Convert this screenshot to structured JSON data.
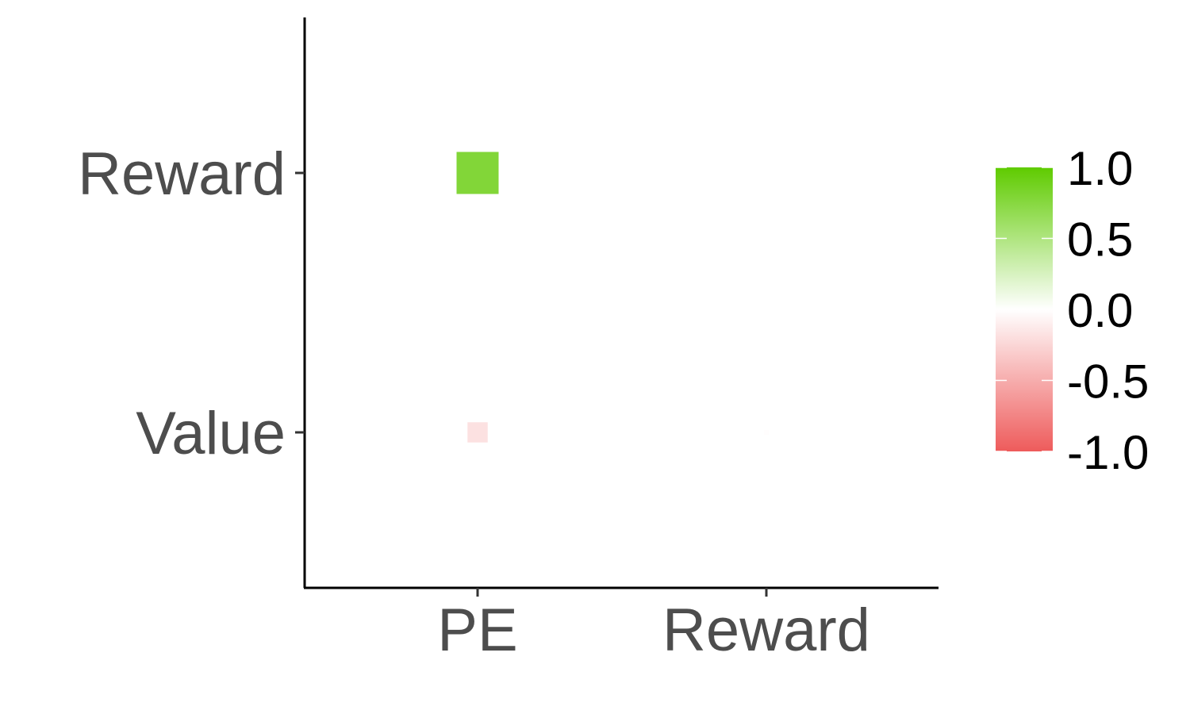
{
  "chart_data": {
    "type": "heatmap",
    "x_categories": [
      "PE",
      "Reward"
    ],
    "y_categories": [
      "Value",
      "Reward"
    ],
    "cells": [
      {
        "x": "PE",
        "y": "Reward",
        "value": 0.78
      },
      {
        "x": "PE",
        "y": "Value",
        "value": -0.18
      },
      {
        "x": "Reward",
        "y": "Value",
        "value": -0.01
      }
    ],
    "size_encodes_abs_value": true,
    "colorbar": {
      "limits": [
        -1.0,
        1.0
      ],
      "ticks": [
        "1.0",
        "0.5",
        "0.0",
        "-0.5",
        "-1.0"
      ],
      "colors": {
        "low": "#ee5b5b",
        "mid": "#ffffff",
        "high": "#5fcb00"
      }
    },
    "title": "",
    "xlabel": "",
    "ylabel": "",
    "grid": false,
    "legend_position": "right"
  }
}
